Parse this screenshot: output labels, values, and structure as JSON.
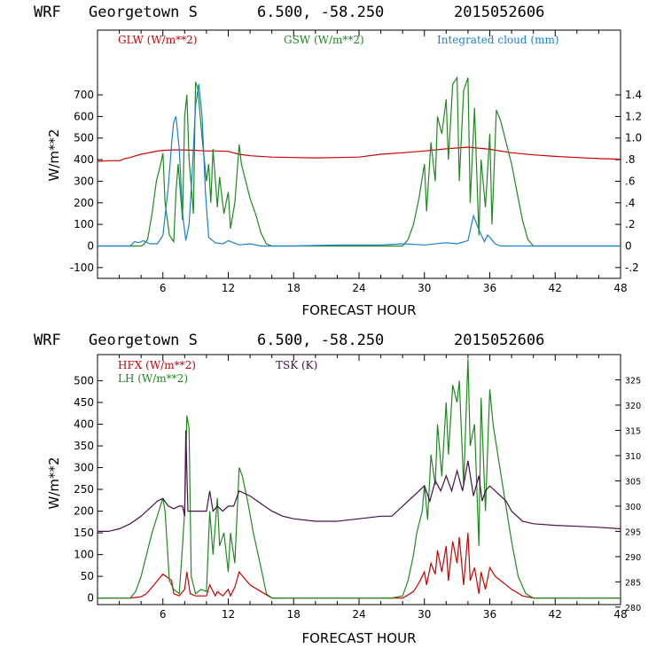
{
  "chart_data": [
    {
      "type": "line",
      "header": {
        "model": "WRF",
        "station": "Georgetown S",
        "coords": "6.500, -58.250",
        "run": "2015052606"
      },
      "xlabel": "FORECAST HOUR",
      "ylabel": "W/m**2",
      "xlim": [
        0,
        48
      ],
      "ylim": [
        -150,
        1000
      ],
      "y2lim": [
        -0.3,
        2.0
      ],
      "xticks": [
        "6",
        "12",
        "18",
        "24",
        "30",
        "36",
        "42",
        "48"
      ],
      "yticks": [
        "-100",
        "0",
        "100",
        "200",
        "300",
        "400",
        "500",
        "600",
        "700"
      ],
      "y2ticks": [
        "-.2",
        "0",
        ".2",
        ".4",
        ".6",
        ".8",
        "1.0",
        "1.2",
        "1.4"
      ],
      "series": [
        {
          "name": "GLW (W/m**2)",
          "axis": "left",
          "color": "#cc0000",
          "x": [
            0,
            1,
            2,
            2.5,
            3,
            3.5,
            4,
            4.5,
            5,
            5.5,
            6,
            7,
            8,
            9,
            10,
            11,
            12,
            13,
            14,
            16,
            18,
            20,
            22,
            24,
            26,
            28,
            30,
            32,
            34,
            36,
            38,
            40,
            42,
            44,
            46,
            48
          ],
          "y": [
            392,
            395,
            395,
            405,
            410,
            418,
            425,
            430,
            435,
            440,
            443,
            445,
            445,
            443,
            440,
            440,
            438,
            425,
            418,
            412,
            410,
            408,
            410,
            412,
            425,
            432,
            440,
            450,
            458,
            448,
            432,
            422,
            415,
            410,
            405,
            402
          ]
        },
        {
          "name": "GSW (W/m**2)",
          "axis": "left",
          "color": "#1e8a1e",
          "x": [
            0,
            2,
            4,
            4.2,
            4.6,
            5,
            5.4,
            5.8,
            6,
            6.2,
            6.6,
            7,
            7.2,
            7.4,
            7.8,
            8,
            8.2,
            8.4,
            8.8,
            9,
            9.2,
            9.6,
            10,
            10.2,
            10.4,
            10.6,
            11,
            11.2,
            11.6,
            12,
            12.2,
            12.6,
            13,
            13.2,
            13.6,
            14,
            14.5,
            15,
            15.5,
            16,
            20,
            24,
            26,
            27,
            28,
            28.5,
            29,
            29.5,
            30,
            30.2,
            30.6,
            31,
            31.2,
            31.6,
            32,
            32.2,
            32.6,
            33,
            33.2,
            33.6,
            34,
            34.2,
            34.6,
            35,
            35.2,
            35.6,
            36,
            36.2,
            36.6,
            37,
            37.5,
            38,
            38.5,
            39,
            39.5,
            40,
            44,
            48
          ],
          "y": [
            0,
            0,
            0,
            5,
            30,
            150,
            300,
            380,
            430,
            200,
            50,
            20,
            250,
            380,
            120,
            600,
            700,
            400,
            150,
            760,
            730,
            500,
            300,
            380,
            200,
            450,
            180,
            320,
            150,
            250,
            80,
            200,
            470,
            380,
            300,
            220,
            150,
            60,
            10,
            0,
            0,
            0,
            0,
            0,
            0,
            30,
            100,
            220,
            380,
            160,
            480,
            300,
            600,
            520,
            680,
            400,
            750,
            780,
            300,
            720,
            780,
            200,
            640,
            50,
            400,
            180,
            520,
            100,
            630,
            580,
            480,
            380,
            250,
            120,
            30,
            0,
            0,
            0
          ]
        },
        {
          "name": "Integrated cloud (mm)",
          "axis": "right",
          "color": "#1a7fd4",
          "x": [
            0,
            2,
            3,
            3.4,
            3.8,
            4.2,
            4.8,
            5.5,
            6,
            6.5,
            6.8,
            7,
            7.2,
            7.5,
            7.8,
            8.1,
            8.4,
            8.7,
            9,
            9.3,
            9.6,
            9.9,
            10.2,
            10.8,
            11.5,
            12,
            13,
            14,
            15,
            18,
            22,
            26,
            28,
            30,
            32,
            33,
            34,
            34.5,
            35,
            35.5,
            35.8,
            36,
            36.5,
            37,
            40,
            48
          ],
          "x_end": 48,
          "y": [
            0,
            0,
            0,
            0.04,
            0.03,
            0.05,
            0.02,
            0.02,
            0.1,
            0.55,
            0.95,
            1.15,
            1.2,
            0.9,
            0.3,
            0.05,
            0.2,
            0.7,
            1.3,
            1.5,
            1.2,
            0.5,
            0.08,
            0.03,
            0.02,
            0.05,
            0.01,
            0.02,
            0,
            0,
            0.01,
            0.01,
            0.02,
            0.01,
            0.03,
            0.02,
            0.05,
            0.28,
            0.15,
            0.04,
            0.1,
            0.08,
            0.02,
            0,
            0,
            0
          ]
        }
      ]
    },
    {
      "type": "line",
      "header": {
        "model": "WRF",
        "station": "Georgetown S",
        "coords": "6.500, -58.250",
        "run": "2015052606"
      },
      "xlabel": "FORECAST HOUR",
      "ylabel": "W/m**2",
      "xlim": [
        0,
        48
      ],
      "ylim": [
        -15,
        560
      ],
      "y2lim": [
        280.5,
        330
      ],
      "xticks": [
        "6",
        "12",
        "18",
        "24",
        "30",
        "36",
        "42",
        "48"
      ],
      "yticks": [
        "0",
        "50",
        "100",
        "150",
        "200",
        "250",
        "300",
        "350",
        "400",
        "450",
        "500"
      ],
      "y2ticks": [
        "280",
        "285",
        "290",
        "295",
        "300",
        "305",
        "310",
        "315",
        "320",
        "325"
      ],
      "series": [
        {
          "name": "HFX (W/m**2)",
          "axis": "left",
          "color": "#cc0000",
          "x": [
            0,
            3,
            4,
            4.5,
            5,
            5.5,
            6,
            6.3,
            6.8,
            7,
            7.5,
            8,
            8.2,
            8.5,
            9,
            10,
            10.3,
            10.8,
            11,
            11.5,
            12,
            12.2,
            12.6,
            13,
            13.5,
            14,
            15,
            16,
            20,
            26,
            28,
            29,
            29.5,
            30,
            30.2,
            30.6,
            31,
            31.2,
            31.6,
            32,
            32.2,
            32.6,
            33,
            33.2,
            33.6,
            34,
            34.2,
            34.6,
            35,
            35.2,
            35.6,
            36,
            36.5,
            37,
            38,
            39,
            40,
            44,
            48
          ],
          "y": [
            0,
            0,
            3,
            10,
            25,
            40,
            55,
            50,
            40,
            10,
            5,
            20,
            60,
            10,
            5,
            5,
            30,
            5,
            15,
            5,
            20,
            5,
            25,
            60,
            45,
            30,
            15,
            0,
            0,
            0,
            0,
            15,
            35,
            60,
            30,
            80,
            55,
            110,
            60,
            120,
            40,
            130,
            80,
            140,
            30,
            150,
            40,
            70,
            10,
            60,
            20,
            70,
            50,
            40,
            20,
            5,
            0,
            0,
            0
          ]
        },
        {
          "name": "LH (W/m**2)",
          "axis": "left",
          "color": "#1e8a1e",
          "x": [
            0,
            3,
            3.5,
            4,
            4.5,
            5,
            5.5,
            6,
            6.2,
            6.6,
            7,
            7.5,
            7.8,
            8,
            8.2,
            8.4,
            8.6,
            9,
            9.5,
            10,
            10.3,
            10.6,
            11,
            11.2,
            11.6,
            12,
            12.2,
            12.6,
            13,
            13.3,
            13.8,
            14.3,
            15,
            15.5,
            16,
            20,
            24,
            27,
            28,
            28.5,
            29,
            29.3,
            29.8,
            30,
            30.3,
            30.6,
            31,
            31.2,
            31.6,
            32,
            32.2,
            32.6,
            33,
            33.2,
            33.6,
            34,
            34.2,
            34.6,
            35,
            35.2,
            35.6,
            36,
            36.3,
            36.8,
            37.3,
            38,
            38.6,
            39.3,
            40,
            44,
            48
          ],
          "y": [
            0,
            0,
            15,
            50,
            100,
            150,
            190,
            230,
            200,
            40,
            20,
            10,
            120,
            200,
            420,
            390,
            50,
            10,
            20,
            15,
            200,
            100,
            230,
            120,
            150,
            60,
            150,
            80,
            300,
            280,
            220,
            150,
            70,
            10,
            0,
            0,
            0,
            0,
            5,
            40,
            100,
            150,
            200,
            260,
            180,
            330,
            260,
            400,
            280,
            450,
            330,
            490,
            450,
            500,
            260,
            550,
            350,
            400,
            120,
            460,
            200,
            480,
            400,
            320,
            240,
            130,
            50,
            10,
            0,
            0,
            0
          ]
        },
        {
          "name": "TSK (K)",
          "axis": "right",
          "color": "#4a0f4a",
          "x": [
            0,
            1,
            2,
            3,
            4,
            5,
            5.5,
            6,
            6.5,
            7,
            7.5,
            7.8,
            8,
            8.1,
            8.3,
            8.6,
            9,
            10,
            10.3,
            10.6,
            11,
            11.5,
            12,
            12.5,
            13,
            14,
            15,
            16,
            17,
            18,
            20,
            22,
            24,
            26,
            27,
            28,
            29,
            29.5,
            30,
            30.5,
            31,
            31.5,
            32,
            32.5,
            33,
            33.5,
            34,
            34.5,
            35,
            35.3,
            35.6,
            36,
            36.5,
            37,
            37.5,
            38,
            39,
            40,
            42,
            44,
            46,
            48
          ],
          "y": [
            295,
            295,
            295.5,
            296.5,
            298,
            300,
            301,
            301.5,
            300,
            299.5,
            300,
            300,
            298,
            315,
            299,
            299,
            299,
            299,
            303,
            299,
            300,
            299,
            300,
            300,
            303,
            302,
            300.5,
            299,
            298,
            297.5,
            297,
            297,
            297.5,
            298,
            298,
            300,
            302,
            303,
            304,
            301,
            305,
            303,
            306,
            303,
            307,
            303,
            309,
            302,
            306,
            301,
            303,
            304,
            303,
            302,
            301,
            299,
            297,
            296.5,
            296.2,
            296,
            295.8,
            295.5
          ]
        }
      ]
    }
  ]
}
